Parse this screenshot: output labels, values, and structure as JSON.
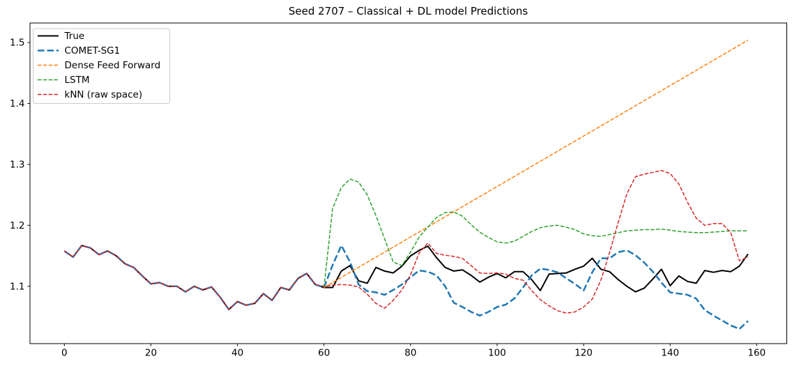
{
  "window": {
    "background": "#ffffff"
  },
  "chart_data": {
    "type": "line",
    "title": "Seed 2707 – Classical + DL model Predictions",
    "xlabel": "",
    "ylabel": "",
    "grid": false,
    "legend_position": "upper left",
    "xlim": [
      -7.95,
      166.95
    ],
    "ylim": [
      1.006,
      1.532
    ],
    "xticks": [
      0,
      20,
      40,
      60,
      80,
      100,
      120,
      140,
      160
    ],
    "yticks": [
      1.1,
      1.2,
      1.3,
      1.4,
      1.5
    ],
    "axis_color": "#000000",
    "legend_border_color": "#cccccc",
    "series": [
      {
        "name": "True",
        "color": "#000000",
        "style": "solid",
        "width": 2,
        "dash": null,
        "x_start": 0,
        "x_step": 2,
        "values": [
          1.158,
          1.148,
          1.167,
          1.163,
          1.152,
          1.158,
          1.15,
          1.137,
          1.131,
          1.117,
          1.104,
          1.106,
          1.1,
          1.1,
          1.091,
          1.1,
          1.094,
          1.099,
          1.082,
          1.062,
          1.075,
          1.069,
          1.072,
          1.088,
          1.077,
          1.098,
          1.094,
          1.113,
          1.121,
          1.103,
          1.098,
          1.098,
          1.125,
          1.134,
          1.109,
          1.105,
          1.131,
          1.125,
          1.122,
          1.133,
          1.15,
          1.159,
          1.166,
          1.147,
          1.131,
          1.125,
          1.127,
          1.118,
          1.107,
          1.115,
          1.121,
          1.114,
          1.124,
          1.124,
          1.111,
          1.093,
          1.12,
          1.121,
          1.122,
          1.128,
          1.133,
          1.146,
          1.128,
          1.124,
          1.111,
          1.1,
          1.091,
          1.097,
          1.112,
          1.128,
          1.101,
          1.117,
          1.108,
          1.105,
          1.126,
          1.123,
          1.126,
          1.124,
          1.133,
          1.153
        ]
      },
      {
        "name": "COMET-SG1",
        "color": "#1f77b4",
        "style": "dashed",
        "width": 2.5,
        "dash": [
          9.5,
          4
        ],
        "x_start": 0,
        "x_step": 2,
        "values": [
          1.158,
          1.148,
          1.167,
          1.163,
          1.152,
          1.158,
          1.15,
          1.137,
          1.131,
          1.117,
          1.104,
          1.106,
          1.1,
          1.1,
          1.091,
          1.1,
          1.094,
          1.099,
          1.082,
          1.062,
          1.075,
          1.069,
          1.072,
          1.088,
          1.077,
          1.098,
          1.094,
          1.113,
          1.121,
          1.103,
          1.098,
          1.135,
          1.167,
          1.14,
          1.103,
          1.092,
          1.09,
          1.086,
          1.094,
          1.103,
          1.115,
          1.126,
          1.124,
          1.118,
          1.1,
          1.073,
          1.066,
          1.058,
          1.052,
          1.058,
          1.066,
          1.07,
          1.08,
          1.098,
          1.118,
          1.129,
          1.127,
          1.123,
          1.113,
          1.104,
          1.093,
          1.123,
          1.146,
          1.146,
          1.156,
          1.159,
          1.151,
          1.139,
          1.124,
          1.106,
          1.09,
          1.088,
          1.086,
          1.08,
          1.061,
          1.052,
          1.044,
          1.036,
          1.03,
          1.043
        ]
      },
      {
        "name": "Dense Feed Forward",
        "color": "#ff7f0e",
        "style": "dashed",
        "width": 1.5,
        "dash": [
          5.5,
          2.3
        ],
        "x_start": 60,
        "x_step": 98,
        "values": [
          1.098,
          1.504
        ]
      },
      {
        "name": "LSTM",
        "color": "#2ca02c",
        "style": "dashed",
        "width": 1.5,
        "dash": [
          5.5,
          2.3
        ],
        "x_start": 60,
        "x_step": 2,
        "values": [
          1.098,
          1.228,
          1.262,
          1.276,
          1.271,
          1.25,
          1.216,
          1.178,
          1.14,
          1.134,
          1.156,
          1.181,
          1.197,
          1.213,
          1.221,
          1.222,
          1.215,
          1.201,
          1.189,
          1.18,
          1.173,
          1.171,
          1.174,
          1.182,
          1.19,
          1.196,
          1.199,
          1.2,
          1.197,
          1.193,
          1.186,
          1.183,
          1.182,
          1.185,
          1.188,
          1.191,
          1.192,
          1.193,
          1.193,
          1.194,
          1.192,
          1.19,
          1.189,
          1.188,
          1.188,
          1.189,
          1.19,
          1.191,
          1.191,
          1.191
        ]
      },
      {
        "name": "kNN (raw space)",
        "color": "#d62728",
        "style": "dashed",
        "width": 1.5,
        "dash": [
          5.5,
          2.3
        ],
        "x_start": 0,
        "x_step": 2,
        "values": [
          1.158,
          1.148,
          1.167,
          1.163,
          1.152,
          1.158,
          1.15,
          1.137,
          1.131,
          1.117,
          1.104,
          1.106,
          1.1,
          1.1,
          1.091,
          1.1,
          1.094,
          1.099,
          1.082,
          1.062,
          1.075,
          1.069,
          1.072,
          1.088,
          1.077,
          1.098,
          1.094,
          1.113,
          1.121,
          1.103,
          1.1,
          1.102,
          1.103,
          1.102,
          1.099,
          1.087,
          1.072,
          1.064,
          1.077,
          1.094,
          1.119,
          1.155,
          1.171,
          1.154,
          1.151,
          1.149,
          1.146,
          1.134,
          1.122,
          1.121,
          1.122,
          1.12,
          1.113,
          1.11,
          1.093,
          1.078,
          1.068,
          1.06,
          1.056,
          1.058,
          1.066,
          1.079,
          1.11,
          1.155,
          1.205,
          1.252,
          1.28,
          1.284,
          1.287,
          1.29,
          1.285,
          1.268,
          1.238,
          1.212,
          1.2,
          1.203,
          1.203,
          1.188,
          1.142,
          1.148
        ]
      }
    ]
  }
}
